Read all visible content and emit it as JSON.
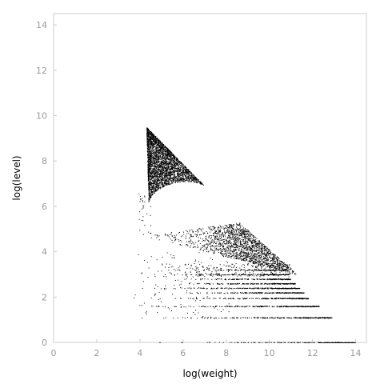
{
  "chart_data": {
    "type": "scatter",
    "xlabel": "log(weight)",
    "ylabel": "log(level)",
    "xlim": [
      0,
      14.5
    ],
    "ylim": [
      0,
      14.5
    ],
    "xticks": [
      0,
      2,
      4,
      6,
      8,
      10,
      12,
      14
    ],
    "yticks": [
      0,
      2,
      4,
      6,
      8,
      10,
      12,
      14
    ],
    "grid": false,
    "point_color": "#000000",
    "frame_color": "#cccccc",
    "tick_label_color": "#999999",
    "regions": [
      {
        "shape": "triangle",
        "vertices": [
          [
            4.3,
            9.5
          ],
          [
            4.4,
            6.2
          ],
          [
            7.0,
            6.9
          ]
        ],
        "density": "high"
      },
      {
        "shape": "triangle",
        "vertices": [
          [
            4.2,
            4.7
          ],
          [
            8.6,
            5.3
          ],
          [
            11.3,
            3.0
          ]
        ],
        "density": "medium"
      }
    ],
    "level_bands": [
      {
        "y": 0.0,
        "x_range": [
          4.5,
          14.0
        ]
      },
      {
        "y": 1.1,
        "x_range": [
          4.4,
          12.9
        ]
      },
      {
        "y": 1.6,
        "x_range": [
          3.6,
          12.3
        ]
      },
      {
        "y": 1.95,
        "x_range": [
          4.5,
          11.8
        ]
      },
      {
        "y": 2.2,
        "x_range": [
          4.8,
          11.6
        ]
      },
      {
        "y": 2.4,
        "x_range": [
          3.8,
          11.4
        ]
      },
      {
        "y": 2.6,
        "x_range": [
          5.0,
          11.2
        ]
      },
      {
        "y": 2.8,
        "x_range": [
          5.5,
          11.0
        ]
      },
      {
        "y": 3.0,
        "x_range": [
          4.6,
          10.9
        ]
      },
      {
        "y": 3.2,
        "x_range": [
          6.0,
          10.8
        ]
      }
    ]
  }
}
